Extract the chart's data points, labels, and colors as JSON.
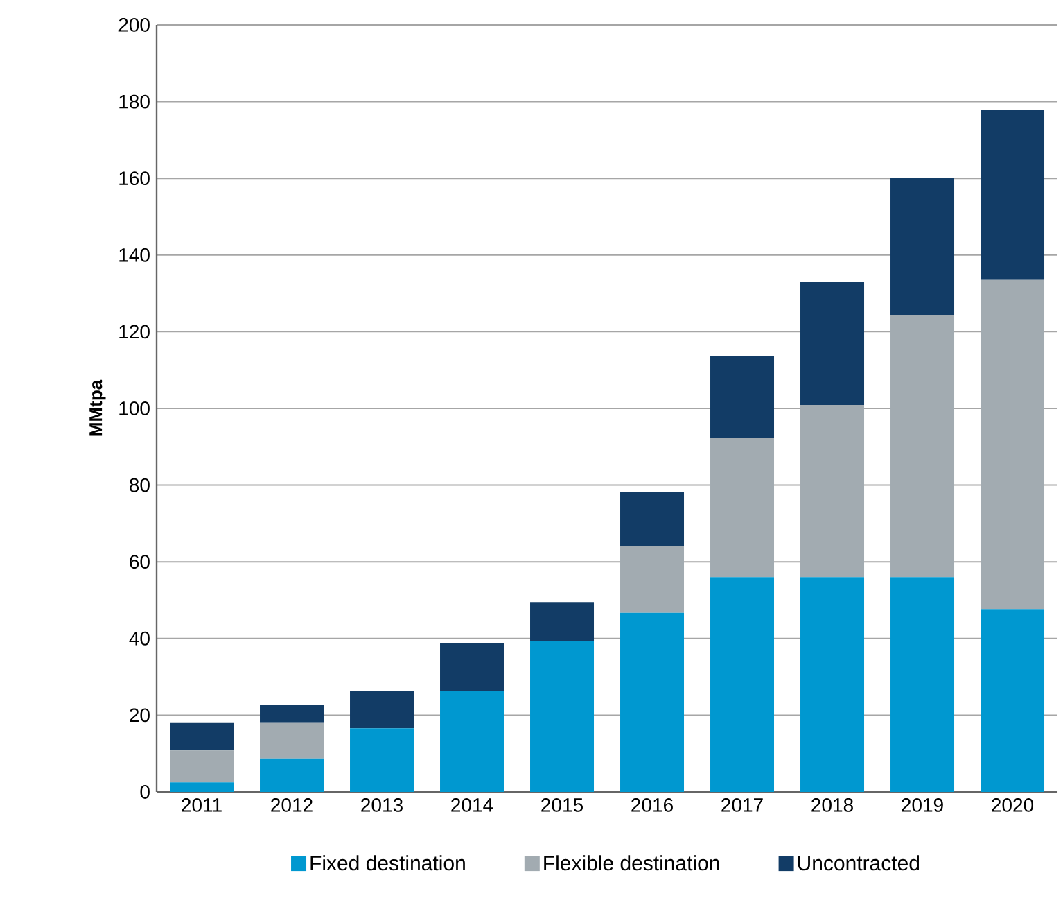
{
  "chart_data": {
    "type": "bar",
    "stacked": true,
    "ylabel": "MMtpa",
    "categories": [
      "2011",
      "2012",
      "2013",
      "2014",
      "2015",
      "2016",
      "2017",
      "2018",
      "2019",
      "2020"
    ],
    "series": [
      {
        "name": "Fixed destination",
        "color": "#0098d0",
        "values": [
          2.5,
          8.7,
          16.6,
          26.4,
          39.4,
          46.7,
          56,
          56,
          56,
          47.7
        ]
      },
      {
        "name": "Flexible destination",
        "color": "#a2abb1",
        "values": [
          8.3,
          9.4,
          0,
          0,
          0,
          17.3,
          36.2,
          44.9,
          68.4,
          85.8
        ]
      },
      {
        "name": "Uncontracted",
        "color": "#123c66",
        "values": [
          7.3,
          4.7,
          9.8,
          12.3,
          10.1,
          14.1,
          21.4,
          32.2,
          35.8,
          44.4
        ]
      }
    ],
    "ylim": [
      0,
      200
    ],
    "yticks": [
      0,
      20,
      40,
      60,
      80,
      100,
      120,
      140,
      160,
      180,
      200
    ],
    "grid": "y",
    "legend": "bottom"
  }
}
